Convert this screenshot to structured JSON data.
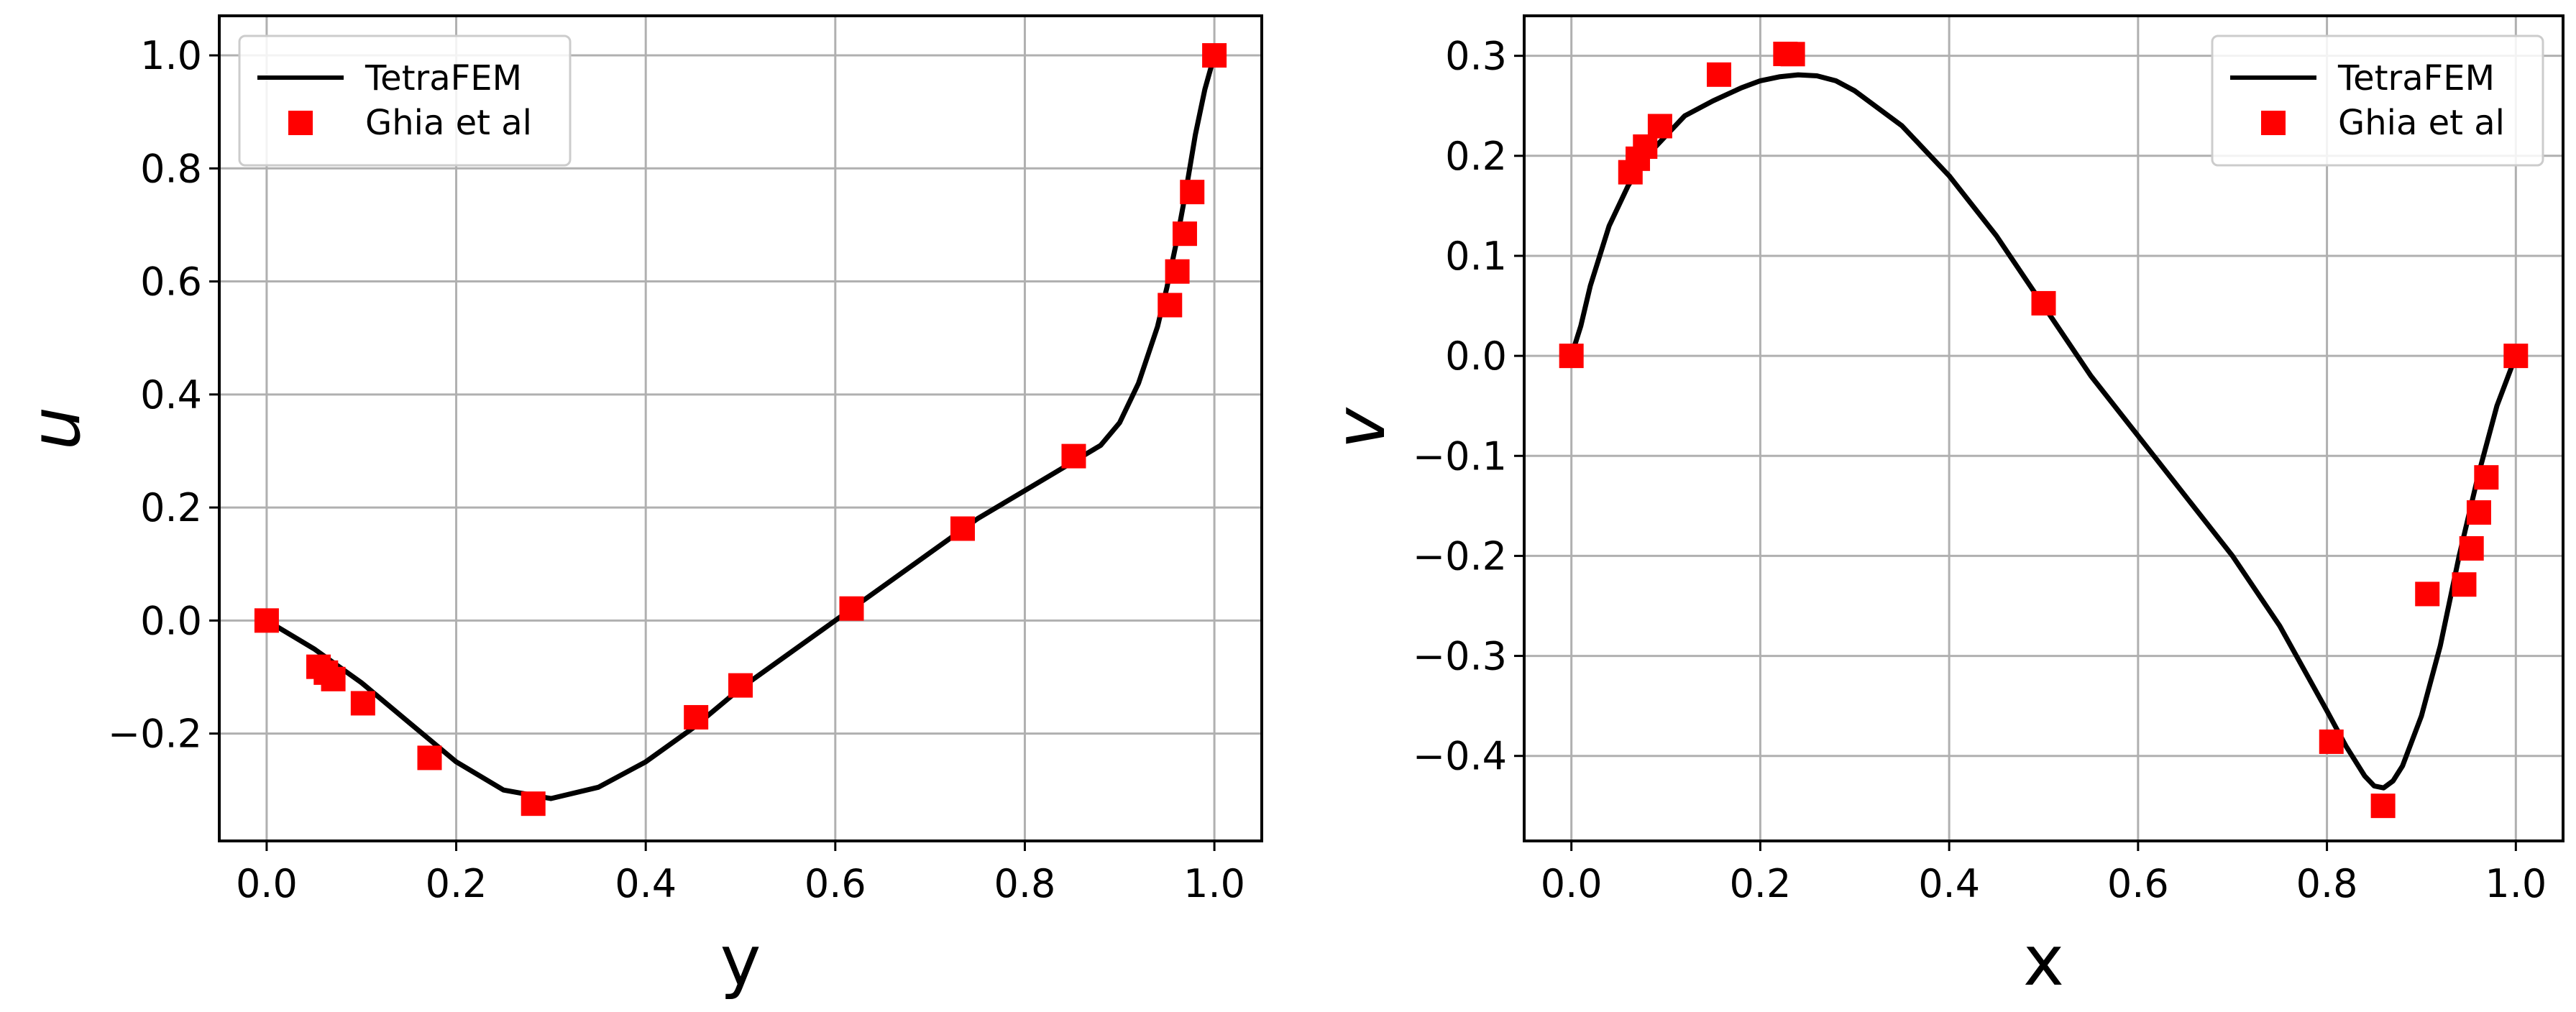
{
  "chart_data": [
    {
      "type": "line",
      "xlabel": "y",
      "ylabel": "u",
      "xlim": [
        -0.05,
        1.05
      ],
      "ylim": [
        -0.39,
        1.07
      ],
      "xticks": [
        "0.0",
        "0.2",
        "0.4",
        "0.6",
        "0.8",
        "1.0"
      ],
      "yticks": [
        "−0.2",
        "0.0",
        "0.2",
        "0.4",
        "0.6",
        "0.8",
        "1.0"
      ],
      "ytick_values": [
        -0.2,
        0.0,
        0.2,
        0.4,
        0.6,
        0.8,
        1.0
      ],
      "xtick_values": [
        0.0,
        0.2,
        0.4,
        0.6,
        0.8,
        1.0
      ],
      "grid": true,
      "legend_position": "top-left",
      "series": [
        {
          "name": "TetraFEM",
          "kind": "line",
          "color": "#000000",
          "x": [
            0.0,
            0.05,
            0.1,
            0.15,
            0.2,
            0.25,
            0.3,
            0.35,
            0.4,
            0.45,
            0.5,
            0.55,
            0.6,
            0.65,
            0.7,
            0.75,
            0.8,
            0.85,
            0.88,
            0.9,
            0.92,
            0.94,
            0.95,
            0.96,
            0.97,
            0.98,
            0.99,
            1.0
          ],
          "y": [
            0.0,
            -0.05,
            -0.11,
            -0.18,
            -0.25,
            -0.3,
            -0.315,
            -0.295,
            -0.25,
            -0.19,
            -0.12,
            -0.06,
            0.0,
            0.06,
            0.12,
            0.18,
            0.23,
            0.28,
            0.31,
            0.35,
            0.42,
            0.52,
            0.59,
            0.67,
            0.76,
            0.86,
            0.94,
            1.0
          ]
        },
        {
          "name": "Ghia et al",
          "kind": "scatter",
          "color": "#ff0000",
          "x": [
            0.0,
            0.0547,
            0.0625,
            0.0703,
            0.1016,
            0.1719,
            0.2813,
            0.4531,
            0.5,
            0.6172,
            0.7344,
            0.8516,
            0.9531,
            0.9609,
            0.9688,
            0.9766,
            1.0
          ],
          "y": [
            0.0,
            -0.0818,
            -0.0922,
            -0.1036,
            -0.1464,
            -0.243,
            -0.3241,
            -0.1712,
            -0.1148,
            0.0212,
            0.1626,
            0.2909,
            0.5581,
            0.6176,
            0.6844,
            0.7582,
            1.0
          ]
        }
      ]
    },
    {
      "type": "line",
      "xlabel": "x",
      "ylabel": "v",
      "xlim": [
        -0.05,
        1.05
      ],
      "ylim": [
        -0.485,
        0.34
      ],
      "xticks": [
        "0.0",
        "0.2",
        "0.4",
        "0.6",
        "0.8",
        "1.0"
      ],
      "yticks": [
        "−0.4",
        "−0.3",
        "−0.2",
        "−0.1",
        "0.0",
        "0.1",
        "0.2",
        "0.3"
      ],
      "ytick_values": [
        -0.4,
        -0.3,
        -0.2,
        -0.1,
        0.0,
        0.1,
        0.2,
        0.3
      ],
      "xtick_values": [
        0.0,
        0.2,
        0.4,
        0.6,
        0.8,
        1.0
      ],
      "grid": true,
      "legend_position": "top-right",
      "series": [
        {
          "name": "TetraFEM",
          "kind": "line",
          "color": "#000000",
          "x": [
            0.0,
            0.01,
            0.02,
            0.04,
            0.06,
            0.08,
            0.1,
            0.12,
            0.15,
            0.18,
            0.2,
            0.22,
            0.24,
            0.26,
            0.28,
            0.3,
            0.35,
            0.4,
            0.45,
            0.5,
            0.55,
            0.6,
            0.65,
            0.7,
            0.75,
            0.8,
            0.82,
            0.84,
            0.85,
            0.86,
            0.87,
            0.88,
            0.9,
            0.92,
            0.94,
            0.96,
            0.98,
            1.0
          ],
          "y": [
            0.0,
            0.03,
            0.07,
            0.13,
            0.17,
            0.2,
            0.22,
            0.24,
            0.255,
            0.268,
            0.275,
            0.279,
            0.281,
            0.28,
            0.275,
            0.265,
            0.23,
            0.18,
            0.12,
            0.05,
            -0.02,
            -0.08,
            -0.14,
            -0.2,
            -0.27,
            -0.355,
            -0.39,
            -0.42,
            -0.43,
            -0.432,
            -0.425,
            -0.41,
            -0.36,
            -0.29,
            -0.2,
            -0.12,
            -0.05,
            0.0
          ]
        },
        {
          "name": "Ghia et al",
          "kind": "scatter",
          "color": "#ff0000",
          "x": [
            0.0,
            0.0625,
            0.0703,
            0.0781,
            0.0938,
            0.1563,
            0.2266,
            0.2344,
            0.5,
            0.8047,
            0.8594,
            0.9063,
            0.9453,
            0.9531,
            0.9609,
            0.9688,
            1.0
          ],
          "y": [
            0.0,
            0.1836,
            0.1971,
            0.2092,
            0.2297,
            0.2812,
            0.3019,
            0.3017,
            0.0526,
            -0.3858,
            -0.4499,
            -0.2381,
            -0.2286,
            -0.1925,
            -0.1566,
            -0.1215,
            0.0
          ]
        }
      ]
    }
  ]
}
